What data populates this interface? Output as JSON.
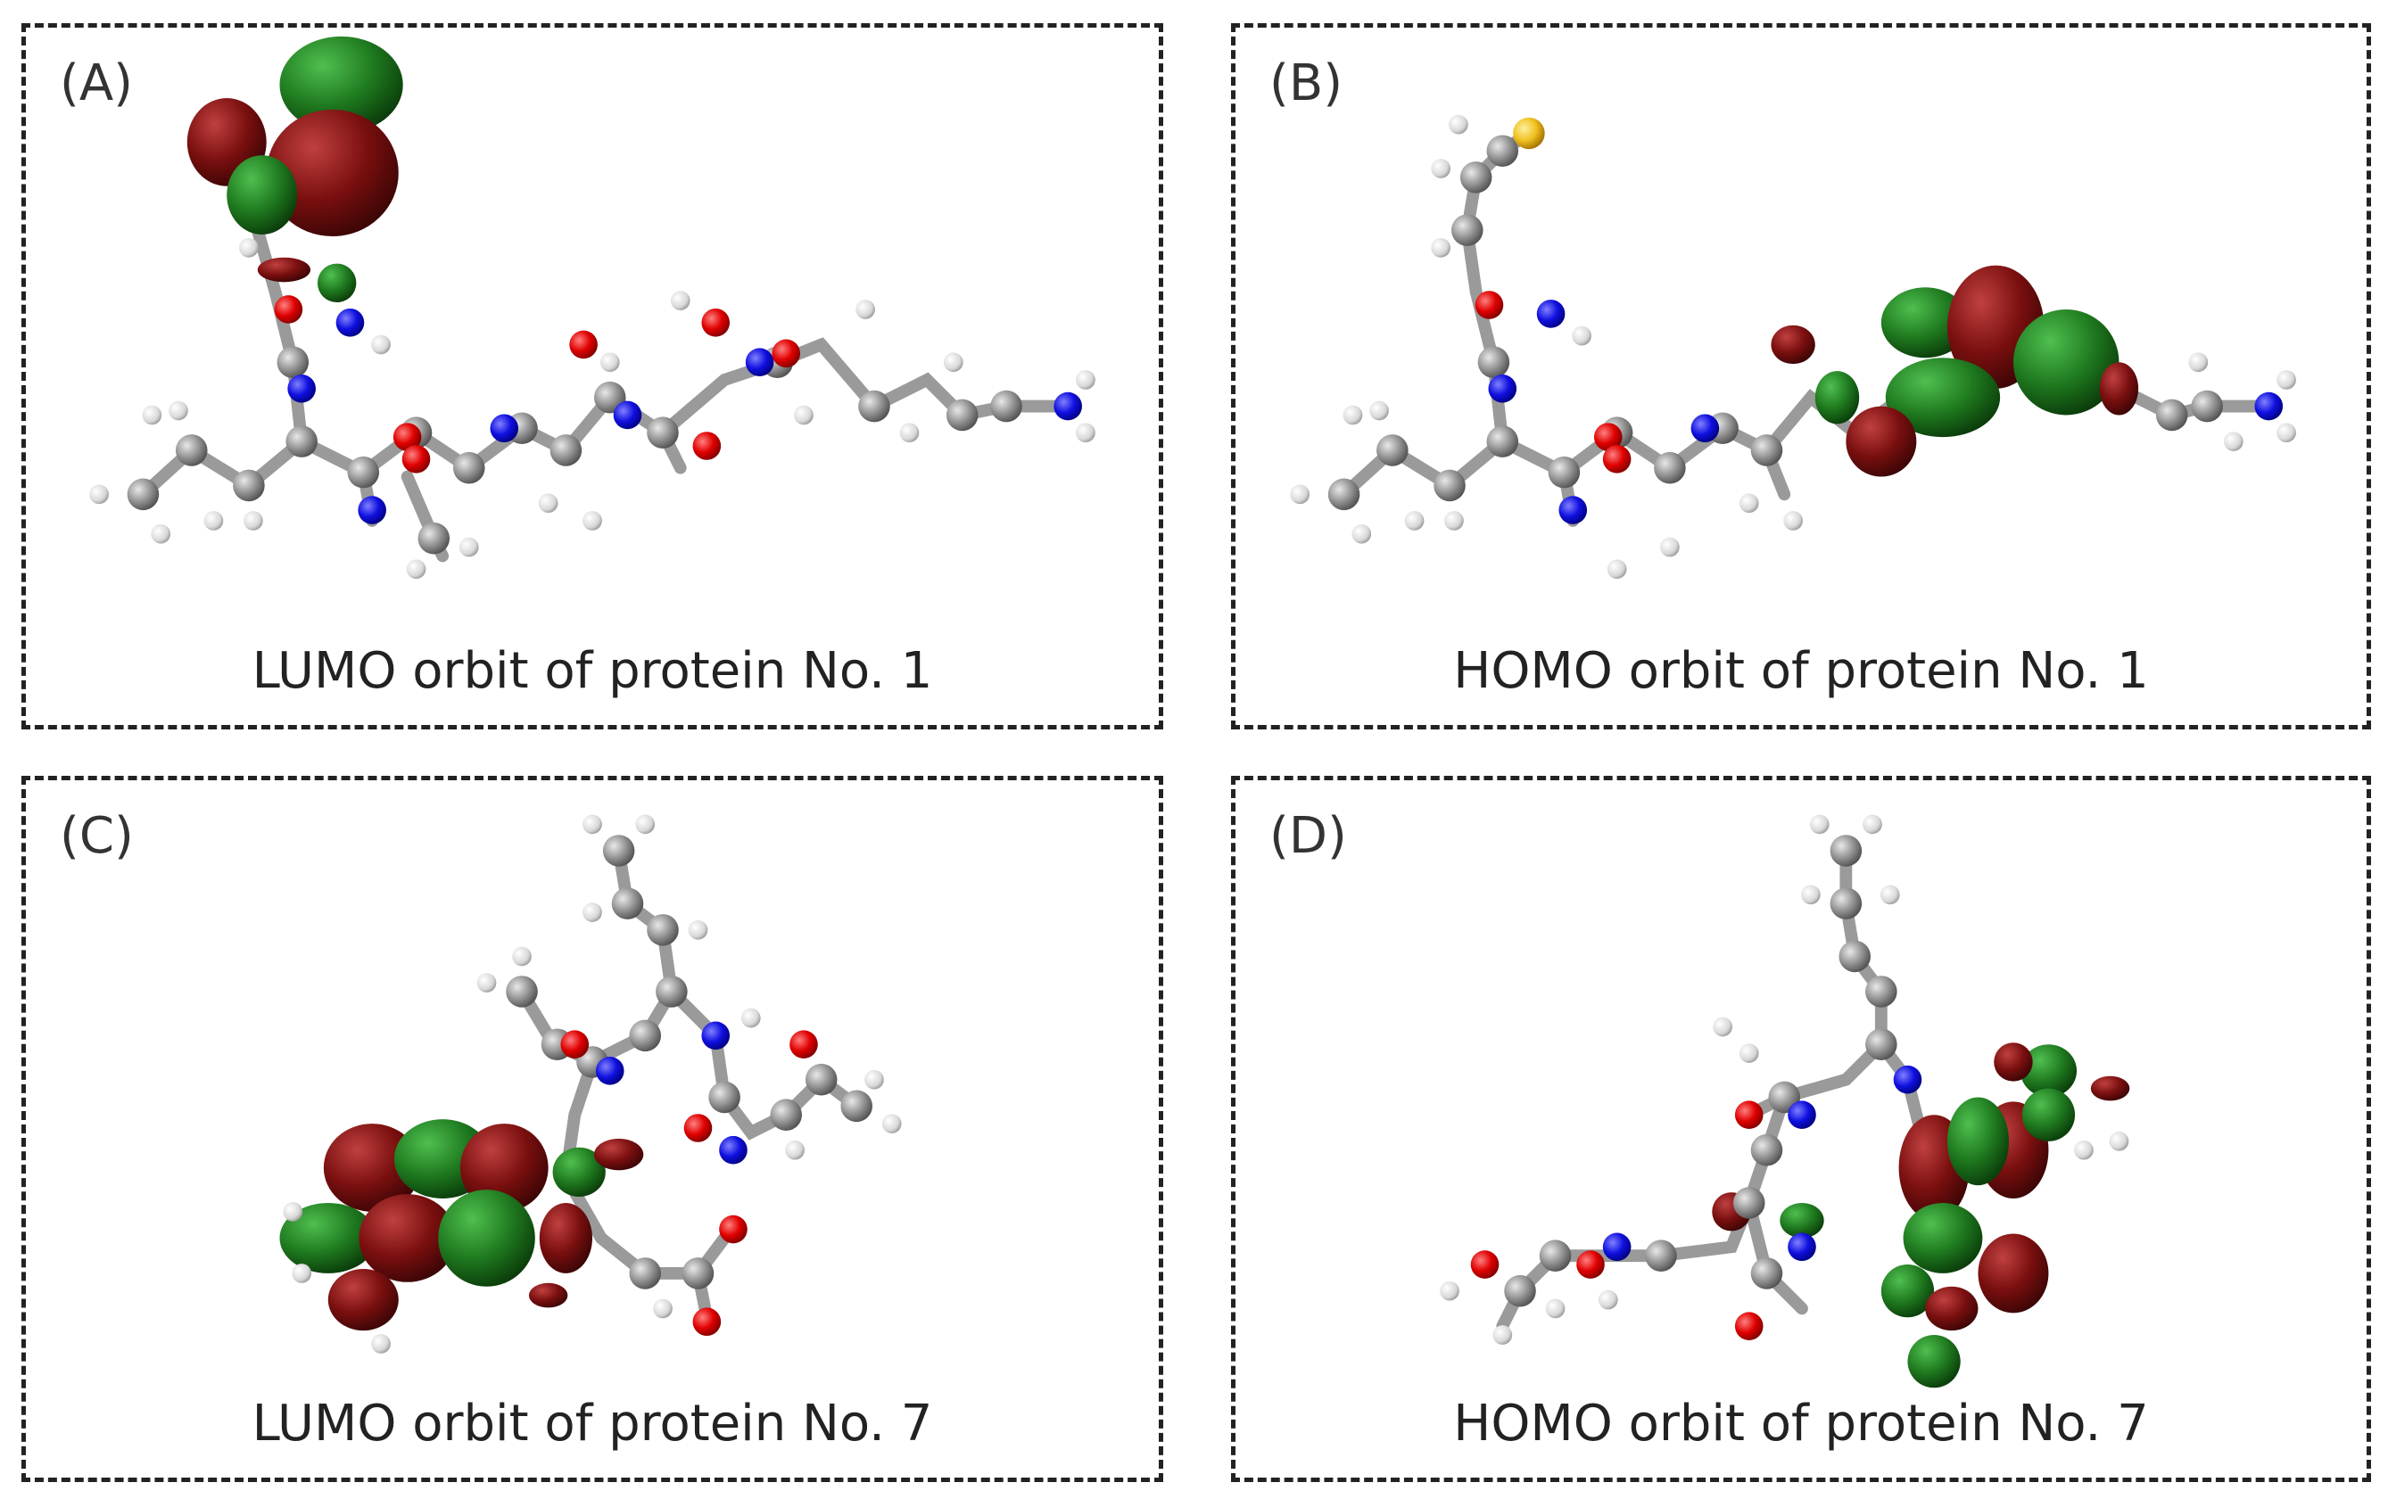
{
  "panels": [
    {
      "letter": "(A)",
      "caption": "LUMO orbit of protein No. 1"
    },
    {
      "letter": "(B)",
      "caption": "HOMO orbit of protein No. 1"
    },
    {
      "letter": "(C)",
      "caption": "LUMO orbit of protein No. 7"
    },
    {
      "letter": "(D)",
      "caption": "HOMO orbit of protein No. 7"
    }
  ],
  "colors": {
    "carbon": "#8c8c8c",
    "hydrogen": "#e6e6e6",
    "oxygen": "#e00000",
    "nitrogen": "#1010e0",
    "sulfur": "#f0c020",
    "lobe_positive": "#1f7a1f",
    "lobe_negative": "#7a0f0f"
  }
}
